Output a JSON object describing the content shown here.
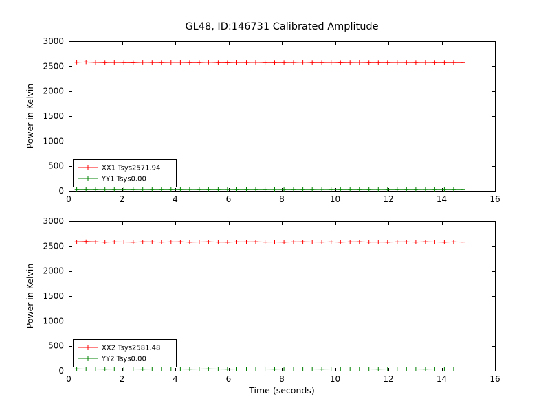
{
  "figure": {
    "title": "GL48, ID:146731 Calibrated Amplitude",
    "xlabel": "Time (seconds)",
    "ylabel": "Power in Kelvin",
    "background": "#ffffff",
    "frame_color": "#000000"
  },
  "chart_data": [
    {
      "type": "line",
      "title": "GL48, ID:146731 Calibrated Amplitude",
      "ylabel": "Power in Kelvin",
      "xlim": [
        0,
        16
      ],
      "ylim": [
        0,
        3000
      ],
      "xticks": [
        0,
        2,
        4,
        6,
        8,
        10,
        12,
        14,
        16
      ],
      "yticks": [
        0,
        500,
        1000,
        1500,
        2000,
        2500,
        3000
      ],
      "grid": false,
      "legend_position": "lower-left",
      "x": [
        0.3,
        0.65,
        1.01,
        1.36,
        1.71,
        2.07,
        2.42,
        2.78,
        3.13,
        3.48,
        3.84,
        4.19,
        4.54,
        4.9,
        5.25,
        5.61,
        5.96,
        6.31,
        6.67,
        7.02,
        7.37,
        7.73,
        8.08,
        8.44,
        8.79,
        9.14,
        9.5,
        9.85,
        10.2,
        10.56,
        10.91,
        11.27,
        11.62,
        11.97,
        12.33,
        12.68,
        13.03,
        13.39,
        13.74,
        14.1,
        14.45,
        14.8
      ],
      "series": [
        {
          "name": "XX1 Tsys2571.94",
          "color": "#ff0000",
          "marker": "+",
          "values": [
            2576,
            2581,
            2574,
            2569,
            2573,
            2571,
            2568,
            2575,
            2572,
            2570,
            2573,
            2574,
            2569,
            2571,
            2576,
            2570,
            2568,
            2573,
            2572,
            2575,
            2570,
            2571,
            2569,
            2572,
            2576,
            2571,
            2570,
            2573,
            2568,
            2572,
            2574,
            2570,
            2571,
            2569,
            2573,
            2572,
            2570,
            2574,
            2571,
            2569,
            2572,
            2570
          ]
        },
        {
          "name": "YY1 Tsys0.00",
          "color": "#008000",
          "marker": "+",
          "values": [
            32,
            30,
            31,
            29,
            30,
            31,
            30,
            29,
            31,
            30,
            30,
            31,
            29,
            30,
            32,
            30,
            29,
            31,
            30,
            30,
            31,
            29,
            30,
            31,
            30,
            30,
            29,
            31,
            30,
            30,
            31,
            30,
            29,
            30,
            31,
            30,
            30,
            29,
            31,
            30,
            30,
            31
          ]
        }
      ]
    },
    {
      "type": "line",
      "xlabel": "Time (seconds)",
      "ylabel": "Power in Kelvin",
      "xlim": [
        0,
        16
      ],
      "ylim": [
        0,
        3000
      ],
      "xticks": [
        0,
        2,
        4,
        6,
        8,
        10,
        12,
        14,
        16
      ],
      "yticks": [
        0,
        500,
        1000,
        1500,
        2000,
        2500,
        3000
      ],
      "grid": false,
      "legend_position": "lower-left",
      "x": [
        0.3,
        0.65,
        1.01,
        1.36,
        1.71,
        2.07,
        2.42,
        2.78,
        3.13,
        3.48,
        3.84,
        4.19,
        4.54,
        4.9,
        5.25,
        5.61,
        5.96,
        6.31,
        6.67,
        7.02,
        7.37,
        7.73,
        8.08,
        8.44,
        8.79,
        9.14,
        9.5,
        9.85,
        10.2,
        10.56,
        10.91,
        11.27,
        11.62,
        11.97,
        12.33,
        12.68,
        13.03,
        13.39,
        13.74,
        14.1,
        14.45,
        14.8
      ],
      "series": [
        {
          "name": "XX2 Tsys2581.48",
          "color": "#ff0000",
          "marker": "+",
          "values": [
            2584,
            2590,
            2583,
            2578,
            2582,
            2580,
            2577,
            2584,
            2581,
            2579,
            2582,
            2583,
            2578,
            2580,
            2585,
            2579,
            2577,
            2582,
            2581,
            2584,
            2579,
            2580,
            2578,
            2581,
            2585,
            2580,
            2579,
            2582,
            2577,
            2581,
            2583,
            2579,
            2580,
            2578,
            2582,
            2581,
            2579,
            2583,
            2580,
            2578,
            2581,
            2579
          ]
        },
        {
          "name": "YY2 Tsys0.00",
          "color": "#008000",
          "marker": "+",
          "values": [
            36,
            34,
            35,
            33,
            34,
            35,
            34,
            33,
            35,
            34,
            34,
            35,
            33,
            34,
            36,
            34,
            33,
            35,
            34,
            34,
            35,
            33,
            34,
            35,
            34,
            34,
            33,
            35,
            34,
            34,
            35,
            34,
            33,
            34,
            35,
            34,
            34,
            33,
            35,
            34,
            34,
            35
          ]
        }
      ]
    }
  ]
}
